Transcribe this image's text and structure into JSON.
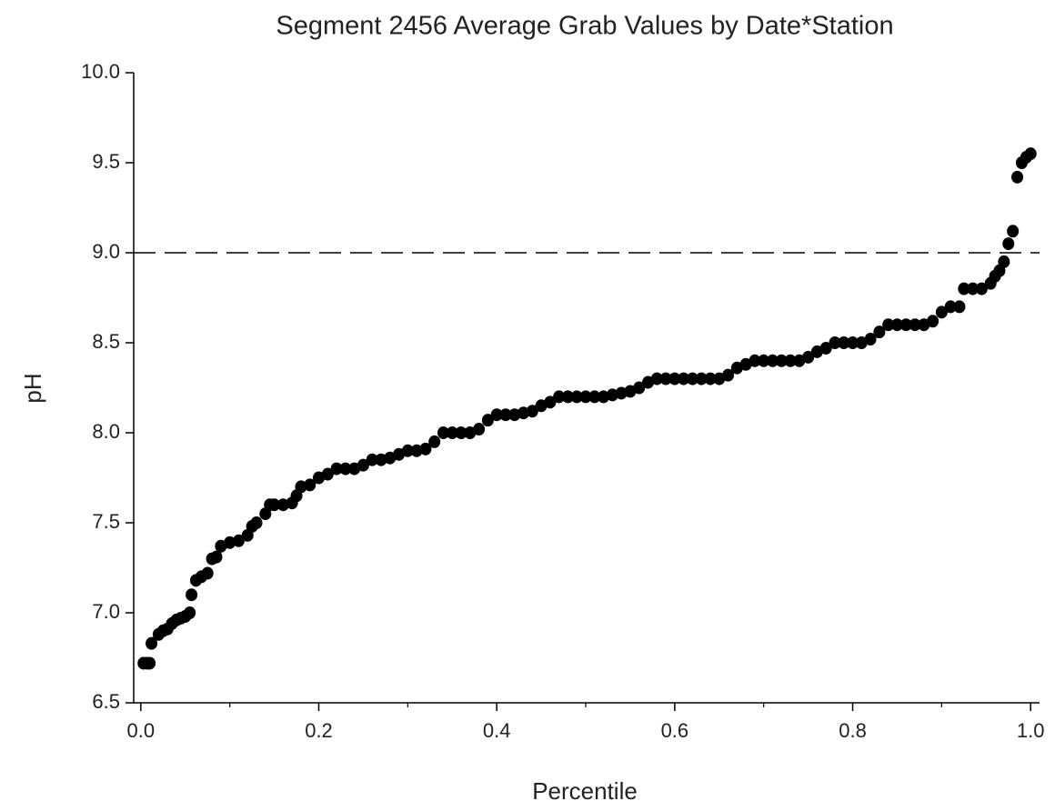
{
  "chart_data": {
    "type": "scatter",
    "title": "Segment 2456 Average Grab Values by Date*Station",
    "xlabel": "Percentile",
    "ylabel": "pH",
    "color": "#000000",
    "xlim": [
      -0.008,
      1.01
    ],
    "ylim": [
      6.5,
      10.0
    ],
    "xticks": [
      {
        "value": 0,
        "label": "0.0"
      },
      {
        "value": 0.2,
        "label": "0.2"
      },
      {
        "value": 0.4,
        "label": "0.4"
      },
      {
        "value": 0.6,
        "label": "0.6"
      },
      {
        "value": 0.8,
        "label": "0.8"
      },
      {
        "value": 1,
        "label": "1.0"
      }
    ],
    "xminor_ticks": [
      0.1,
      0.3,
      0.5,
      0.7,
      0.9
    ],
    "yticks": [
      {
        "value": 6.5,
        "label": "6.5"
      },
      {
        "value": 7,
        "label": "7.0"
      },
      {
        "value": 7.5,
        "label": "7.5"
      },
      {
        "value": 8,
        "label": "8.0"
      },
      {
        "value": 8.5,
        "label": "8.5"
      },
      {
        "value": 9,
        "label": "9.0"
      },
      {
        "value": 9.5,
        "label": "9.5"
      },
      {
        "value": 10,
        "label": "10.0"
      }
    ],
    "reference_line": {
      "y": 9.0,
      "style": "dashed"
    },
    "x": [
      0.003,
      0.007,
      0.01,
      0.012,
      0.02,
      0.025,
      0.03,
      0.035,
      0.04,
      0.045,
      0.05,
      0.055,
      0.057,
      0.062,
      0.068,
      0.075,
      0.08,
      0.085,
      0.09,
      0.1,
      0.11,
      0.12,
      0.125,
      0.13,
      0.14,
      0.145,
      0.15,
      0.16,
      0.17,
      0.175,
      0.18,
      0.19,
      0.2,
      0.21,
      0.22,
      0.23,
      0.24,
      0.25,
      0.26,
      0.27,
      0.28,
      0.29,
      0.3,
      0.31,
      0.32,
      0.33,
      0.34,
      0.35,
      0.36,
      0.37,
      0.38,
      0.39,
      0.4,
      0.41,
      0.42,
      0.43,
      0.44,
      0.45,
      0.46,
      0.47,
      0.48,
      0.49,
      0.5,
      0.51,
      0.52,
      0.53,
      0.54,
      0.55,
      0.56,
      0.57,
      0.58,
      0.59,
      0.6,
      0.61,
      0.62,
      0.63,
      0.64,
      0.65,
      0.66,
      0.67,
      0.68,
      0.69,
      0.7,
      0.71,
      0.72,
      0.73,
      0.74,
      0.75,
      0.76,
      0.77,
      0.78,
      0.79,
      0.8,
      0.81,
      0.82,
      0.83,
      0.84,
      0.85,
      0.86,
      0.87,
      0.88,
      0.89,
      0.9,
      0.91,
      0.92,
      0.925,
      0.935,
      0.945,
      0.955,
      0.96,
      0.965,
      0.97,
      0.975,
      0.98,
      0.985,
      0.99,
      0.995,
      1.0
    ],
    "values": [
      6.72,
      6.72,
      6.72,
      6.83,
      6.88,
      6.9,
      6.91,
      6.94,
      6.96,
      6.97,
      6.98,
      7.0,
      7.1,
      7.18,
      7.2,
      7.22,
      7.3,
      7.31,
      7.37,
      7.39,
      7.4,
      7.43,
      7.48,
      7.5,
      7.55,
      7.6,
      7.6,
      7.6,
      7.61,
      7.65,
      7.7,
      7.71,
      7.75,
      7.77,
      7.8,
      7.8,
      7.8,
      7.82,
      7.85,
      7.85,
      7.86,
      7.88,
      7.9,
      7.9,
      7.91,
      7.95,
      8.0,
      8.0,
      8.0,
      8.0,
      8.02,
      8.07,
      8.1,
      8.1,
      8.1,
      8.11,
      8.12,
      8.15,
      8.17,
      8.2,
      8.2,
      8.2,
      8.2,
      8.2,
      8.2,
      8.21,
      8.22,
      8.23,
      8.25,
      8.28,
      8.3,
      8.3,
      8.3,
      8.3,
      8.3,
      8.3,
      8.3,
      8.3,
      8.32,
      8.36,
      8.38,
      8.4,
      8.4,
      8.4,
      8.4,
      8.4,
      8.4,
      8.42,
      8.45,
      8.47,
      8.5,
      8.5,
      8.5,
      8.5,
      8.52,
      8.56,
      8.6,
      8.6,
      8.6,
      8.6,
      8.6,
      8.62,
      8.67,
      8.7,
      8.7,
      8.8,
      8.8,
      8.8,
      8.83,
      8.87,
      8.9,
      8.95,
      9.05,
      9.12,
      9.42,
      9.5,
      9.53,
      9.55
    ]
  }
}
